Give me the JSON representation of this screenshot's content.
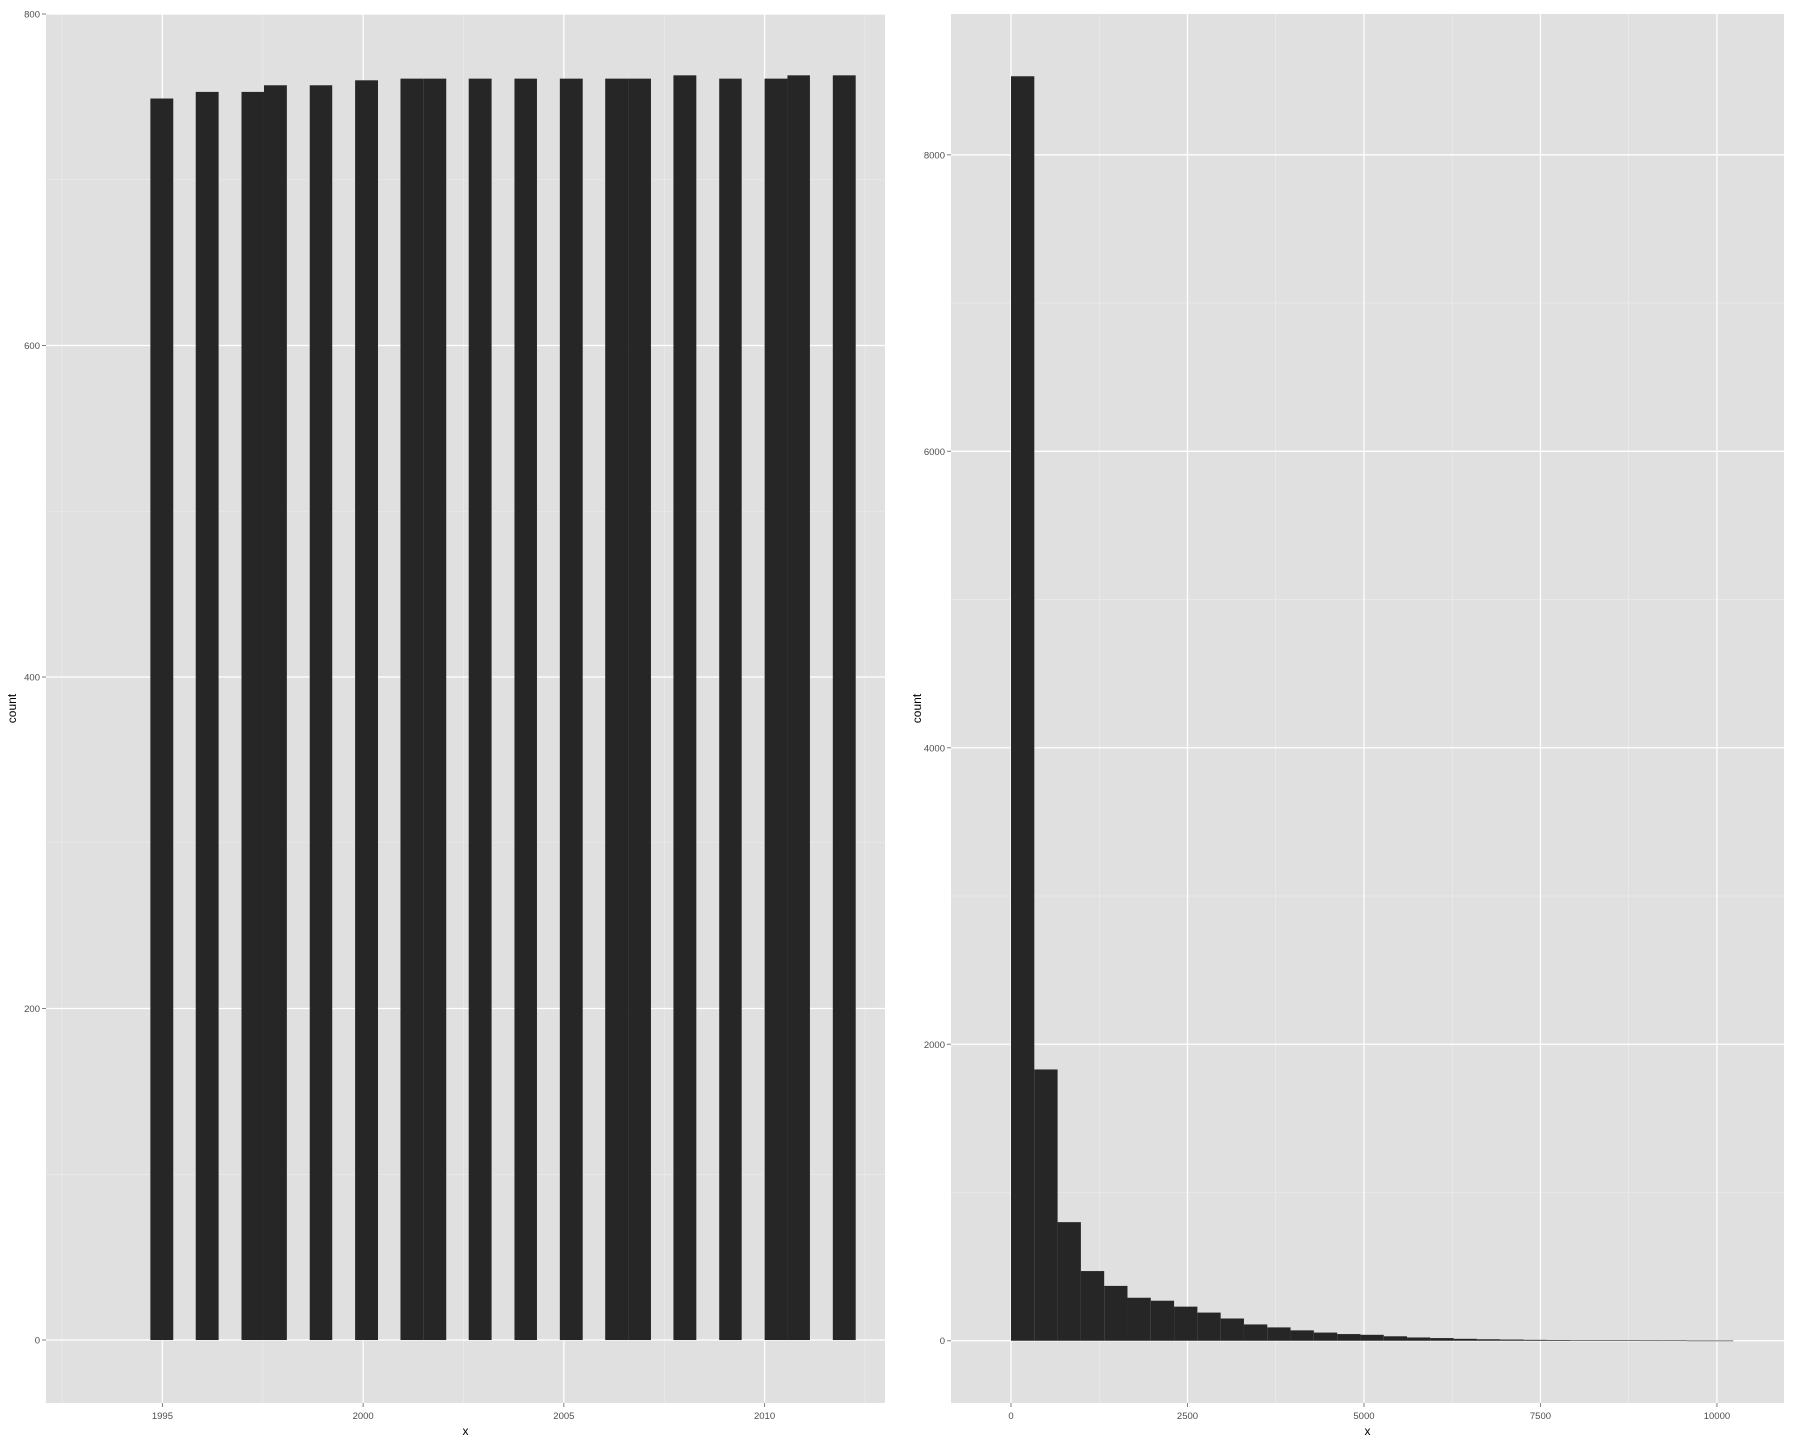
{
  "colors": {
    "panel": "#e0e0e0",
    "bar": "#262626",
    "grid": "#ffffff",
    "tick_text": "#4d4d4d"
  },
  "chart_data": [
    {
      "type": "bar",
      "xlabel": "x",
      "ylabel": "count",
      "xlim": [
        1992.1,
        2013.0
      ],
      "ylim": [
        -38,
        800
      ],
      "xticks": [
        {
          "value": 1995,
          "label": "1995"
        },
        {
          "value": 2000,
          "label": "2000"
        },
        {
          "value": 2005,
          "label": "2005"
        },
        {
          "value": 2010,
          "label": "2010"
        }
      ],
      "yticks": [
        {
          "value": 0,
          "label": "0"
        },
        {
          "value": 200,
          "label": "200"
        },
        {
          "value": 400,
          "label": "400"
        },
        {
          "value": 600,
          "label": "600"
        },
        {
          "value": 800,
          "label": "800"
        }
      ],
      "bins": [
        {
          "x0": 1994.7,
          "x1": 1995.27,
          "count": 749
        },
        {
          "x0": 1995.83,
          "x1": 1996.4,
          "count": 753
        },
        {
          "x0": 1996.97,
          "x1": 1997.53,
          "count": 753
        },
        {
          "x0": 1997.53,
          "x1": 1998.1,
          "count": 757
        },
        {
          "x0": 1998.67,
          "x1": 1999.23,
          "count": 757
        },
        {
          "x0": 1999.8,
          "x1": 2000.37,
          "count": 760
        },
        {
          "x0": 2000.93,
          "x1": 2001.5,
          "count": 761
        },
        {
          "x0": 2001.5,
          "x1": 2002.07,
          "count": 761
        },
        {
          "x0": 2002.63,
          "x1": 2003.2,
          "count": 761
        },
        {
          "x0": 2003.77,
          "x1": 2004.33,
          "count": 761
        },
        {
          "x0": 2004.9,
          "x1": 2005.47,
          "count": 761
        },
        {
          "x0": 2006.03,
          "x1": 2006.6,
          "count": 761
        },
        {
          "x0": 2006.6,
          "x1": 2007.17,
          "count": 761
        },
        {
          "x0": 2007.73,
          "x1": 2008.3,
          "count": 763
        },
        {
          "x0": 2008.87,
          "x1": 2009.43,
          "count": 761
        },
        {
          "x0": 2010.0,
          "x1": 2010.57,
          "count": 761
        },
        {
          "x0": 2010.57,
          "x1": 2011.13,
          "count": 763
        },
        {
          "x0": 2011.7,
          "x1": 2012.27,
          "count": 763
        }
      ]
    },
    {
      "type": "bar",
      "xlabel": "x",
      "ylabel": "count",
      "xlim": [
        -850,
        10950
      ],
      "ylim": [
        -420,
        8950
      ],
      "xticks": [
        {
          "value": 0,
          "label": "0"
        },
        {
          "value": 2500,
          "label": "2500"
        },
        {
          "value": 5000,
          "label": "5000"
        },
        {
          "value": 7500,
          "label": "7500"
        },
        {
          "value": 10000,
          "label": "10000"
        }
      ],
      "yticks": [
        {
          "value": 0,
          "label": "0"
        },
        {
          "value": 2000,
          "label": "2000"
        },
        {
          "value": 4000,
          "label": "4000"
        },
        {
          "value": 6000,
          "label": "6000"
        },
        {
          "value": 8000,
          "label": "8000"
        }
      ],
      "bin_width": 330,
      "bin_start": 0,
      "counts": [
        8530,
        1830,
        800,
        470,
        370,
        290,
        270,
        230,
        190,
        150,
        110,
        90,
        70,
        55,
        45,
        40,
        30,
        22,
        18,
        13,
        10,
        8,
        6,
        5,
        4,
        3,
        3,
        2,
        2,
        1,
        1
      ]
    }
  ]
}
